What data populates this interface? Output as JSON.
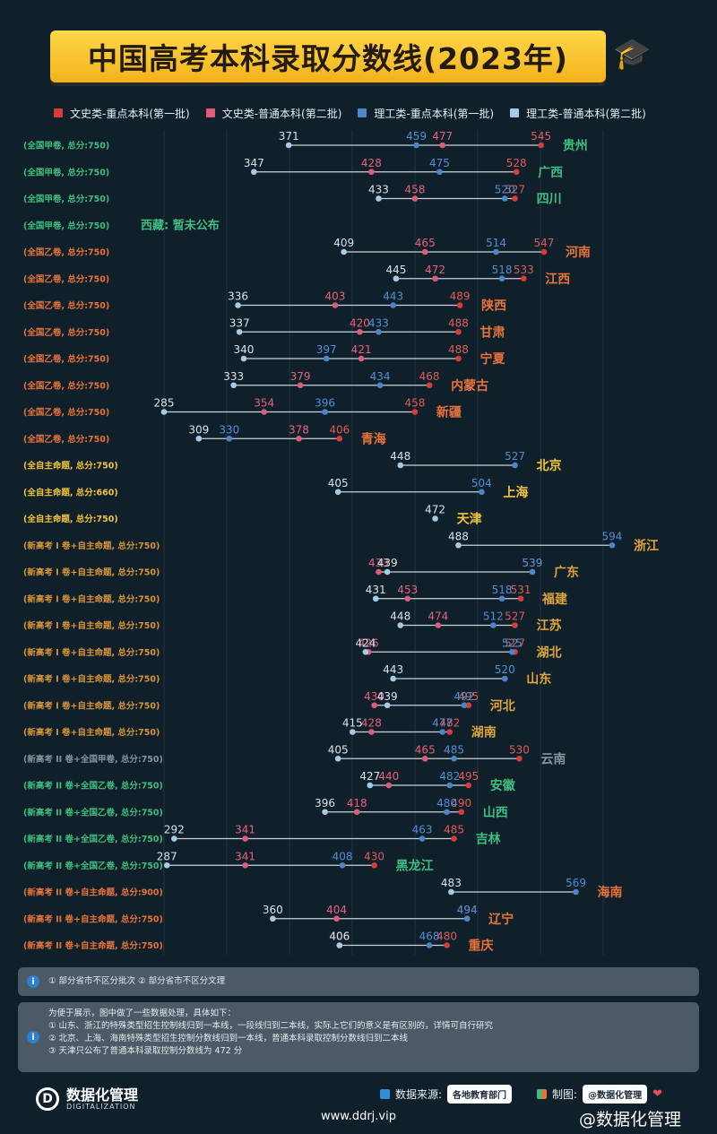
{
  "title": "中国高考本科录取分数线(2023年)",
  "legend": [
    {
      "label": "文史类-重点本科(第一批)",
      "color": "#d93a3a"
    },
    {
      "label": "文史类-普通本科(第二批)",
      "color": "#e05a7a"
    },
    {
      "label": "理工类-重点本科(第一批)",
      "color": "#4a86c8"
    },
    {
      "label": "理工类-普通本科(第二批)",
      "color": "#a6cbe8"
    }
  ],
  "chart_data": {
    "type": "dumbbell",
    "series_names": [
      "文史类-重点本科(第一批)",
      "文史类-普通本科(第二批)",
      "理工类-重点本科(第一批)",
      "理工类-普通本科(第二批)"
    ],
    "rows": [
      {
        "exam": "(全国甲卷, 总分:750)",
        "province": "贵州",
        "wk1": 545,
        "wk2": 477,
        "lg1": 459,
        "lg2": 371,
        "group": "a"
      },
      {
        "exam": "(全国甲卷, 总分:750)",
        "province": "广西",
        "wk1": 528,
        "wk2": 428,
        "lg1": 475,
        "lg2": 347,
        "group": "a"
      },
      {
        "exam": "(全国甲卷, 总分:750)",
        "province": "四川",
        "wk1": 527,
        "wk2": 458,
        "lg1": 520,
        "lg2": 433,
        "group": "a"
      },
      {
        "exam": "(全国甲卷, 总分:750)",
        "province": "西藏: 暂未公布",
        "group": "a",
        "empty": true
      },
      {
        "exam": "(全国乙卷, 总分:750)",
        "province": "河南",
        "wk1": 547,
        "wk2": 465,
        "lg1": 514,
        "lg2": 409,
        "group": "b"
      },
      {
        "exam": "(全国乙卷, 总分:750)",
        "province": "江西",
        "wk1": 533,
        "wk2": 472,
        "lg1": 518,
        "lg2": 445,
        "group": "b"
      },
      {
        "exam": "(全国乙卷, 总分:750)",
        "province": "陕西",
        "wk1": 489,
        "wk2": 403,
        "lg1": 443,
        "lg2": 336,
        "group": "b"
      },
      {
        "exam": "(全国乙卷, 总分:750)",
        "province": "甘肃",
        "wk1": 488,
        "wk2": 420,
        "lg1": 433,
        "lg2": 337,
        "group": "b"
      },
      {
        "exam": "(全国乙卷, 总分:750)",
        "province": "宁夏",
        "wk1": 488,
        "wk2": 421,
        "lg1": 397,
        "lg2": 340,
        "group": "b"
      },
      {
        "exam": "(全国乙卷, 总分:750)",
        "province": "内蒙古",
        "wk1": 468,
        "wk2": 379,
        "lg1": 434,
        "lg2": 333,
        "group": "b"
      },
      {
        "exam": "(全国乙卷, 总分:750)",
        "province": "新疆",
        "wk1": 458,
        "wk2": 354,
        "lg1": 396,
        "lg2": 285,
        "group": "b"
      },
      {
        "exam": "(全国乙卷, 总分:750)",
        "province": "青海",
        "wk1": 406,
        "wk2": 378,
        "lg1": 330,
        "lg2": 309,
        "group": "b"
      },
      {
        "exam": "(全自主命题, 总分:750)",
        "province": "北京",
        "lg1": 527,
        "lg2": 448,
        "group": "c"
      },
      {
        "exam": "(全自主命题, 总分:660)",
        "province": "上海",
        "lg1": 504,
        "lg2": 405,
        "group": "c"
      },
      {
        "exam": "(全自主命题, 总分:750)",
        "province": "天津",
        "lg2": 472,
        "group": "c"
      },
      {
        "exam": "(新高考 I 卷+自主命题, 总分:750)",
        "province": "浙江",
        "lg1": 594,
        "lg2": 488,
        "group": "d"
      },
      {
        "exam": "(新高考 I 卷+自主命题, 总分:750)",
        "province": "广东",
        "wk1": 539,
        "wk2": 433,
        "lg1": 539,
        "lg2": 439,
        "group": "d"
      },
      {
        "exam": "(新高考 I 卷+自主命题, 总分:750)",
        "province": "福建",
        "wk1": 531,
        "wk2": 453,
        "lg1": 518,
        "lg2": 431,
        "group": "d"
      },
      {
        "exam": "(新高考 I 卷+自主命题, 总分:750)",
        "province": "江苏",
        "wk1": 527,
        "wk2": 474,
        "lg1": 512,
        "lg2": 448,
        "group": "d"
      },
      {
        "exam": "(新高考 I 卷+自主命题, 总分:750)",
        "province": "湖北",
        "wk1": 527,
        "wk2": 426,
        "lg1": 525,
        "lg2": 424,
        "group": "d"
      },
      {
        "exam": "(新高考 I 卷+自主命题, 总分:750)",
        "province": "山东",
        "lg1": 520,
        "lg2": 443,
        "group": "d"
      },
      {
        "exam": "(新高考 I 卷+自主命题, 总分:750)",
        "province": "河北",
        "wk1": 495,
        "wk2": 430,
        "lg1": 492,
        "lg2": 439,
        "group": "d"
      },
      {
        "exam": "(新高考 I 卷+自主命题, 总分:750)",
        "province": "湖南",
        "wk1": 482,
        "wk2": 428,
        "lg1": 477,
        "lg2": 415,
        "group": "d"
      },
      {
        "exam": "(新高考 II 卷+全国甲卷, 总分:750)",
        "province": "云南",
        "wk1": 530,
        "wk2": 465,
        "lg1": 485,
        "lg2": 405,
        "group": "e"
      },
      {
        "exam": "(新高考 II 卷+全国乙卷, 总分:750)",
        "province": "安徽",
        "wk1": 495,
        "wk2": 440,
        "lg1": 482,
        "lg2": 427,
        "group": "f"
      },
      {
        "exam": "(新高考 II 卷+全国乙卷, 总分:750)",
        "province": "山西",
        "wk1": 490,
        "wk2": 418,
        "lg1": 480,
        "lg2": 396,
        "group": "f"
      },
      {
        "exam": "(新高考 II 卷+全国乙卷, 总分:750)",
        "province": "吉林",
        "wk1": 485,
        "wk2": 341,
        "lg1": 463,
        "lg2": 292,
        "group": "f"
      },
      {
        "exam": "(新高考 II 卷+全国乙卷, 总分:750)",
        "province": "黑龙江",
        "wk1": 430,
        "wk2": 341,
        "lg1": 408,
        "lg2": 287,
        "group": "f"
      },
      {
        "exam": "(新高考 II 卷+自主命题, 总分:900)",
        "province": "海南",
        "lg1": 569,
        "lg2": 483,
        "group": "g"
      },
      {
        "exam": "(新高考 II 卷+自主命题, 总分:750)",
        "province": "辽宁",
        "wk1": 494,
        "wk2": 404,
        "lg1": 494,
        "lg2": 360,
        "group": "g"
      },
      {
        "exam": "(新高考 II 卷+自主命题, 总分:750)",
        "province": "重庆",
        "wk1": 480,
        "wk2": 406,
        "lg1": 468,
        "lg2": 406,
        "group": "g"
      }
    ]
  },
  "group_colors": {
    "a": "#3fbf7f",
    "b": "#e8733a",
    "c": "#f2c43a",
    "d": "#e0a53a",
    "e": "#8a949c",
    "f": "#3fbf7f",
    "g": "#e8733a"
  },
  "exam_colors": {
    "a": "#3fbf7f",
    "b": "#e8733a",
    "c": "#f2c43a",
    "d": "#d8953a",
    "e": "#8a949c",
    "f": "#3fbf7f",
    "g": "#e8733a"
  },
  "note1": "① 部分省市不区分批次  ② 部分省市不区分文理",
  "note2": {
    "intro": "为便于展示，图中做了一些数据处理，具体如下：",
    "items": [
      "① 山东、浙江的特殊类型招生控制线归到一本线，一段线归到二本线，实际上它们的意义是有区别的，详情可自行研究",
      "② 北京、上海、海南特殊类型招生控制分数线归到一本线，普通本科录取控制分数线归到二本线",
      "③ 天津只公布了普通本科录取控制分数线为 472 分"
    ]
  },
  "footer": {
    "logo_name": "数据化管理",
    "logo_en": "DIGITALIZATION",
    "source_label": "数据来源:",
    "source_value": "各地教育部门",
    "maker_label": "制图:",
    "maker_value": "@数据化管理",
    "site": "www.ddrj.vip",
    "weibo": "@数据化管理"
  },
  "icons": {
    "cap": "graduation-cap-icon",
    "info": "info-icon",
    "heart": "heart-icon"
  }
}
